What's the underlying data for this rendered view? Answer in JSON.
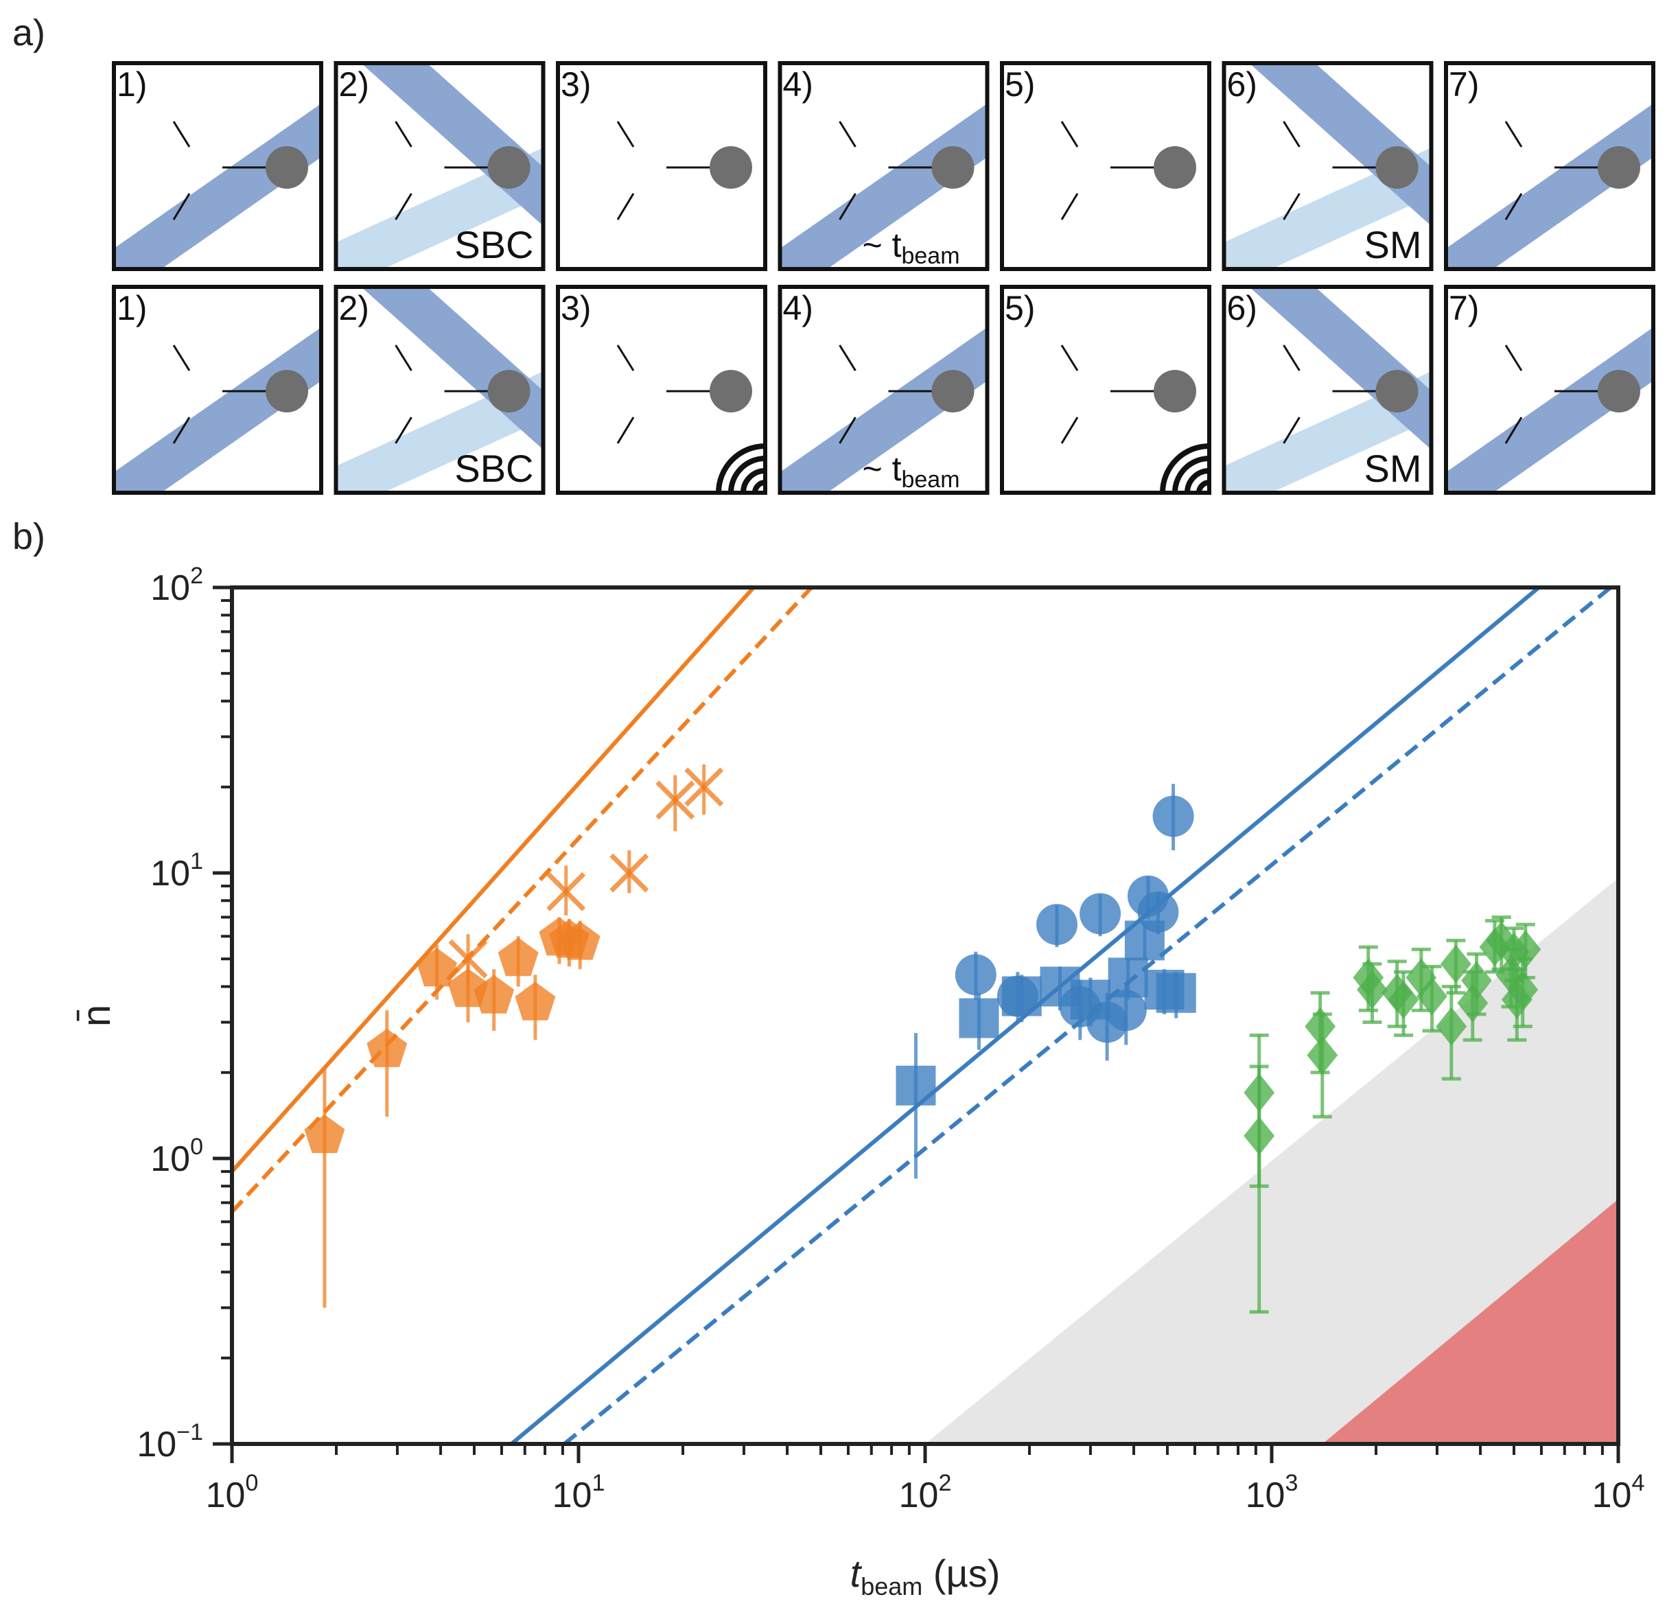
{
  "panel_a": {
    "label": "a)",
    "rows": [
      [
        {
          "num": "1)",
          "text": "",
          "t_beam": false,
          "beams": [
            "diag"
          ],
          "waves": false
        },
        {
          "num": "2)",
          "text": "SBC",
          "t_beam": false,
          "beams": [
            "light",
            "anti"
          ],
          "waves": false
        },
        {
          "num": "3)",
          "text": "",
          "t_beam": false,
          "beams": [],
          "waves": false
        },
        {
          "num": "4)",
          "text": "~ t",
          "sub": "beam",
          "t_beam": true,
          "beams": [
            "diag"
          ],
          "waves": false
        },
        {
          "num": "5)",
          "text": "",
          "t_beam": false,
          "beams": [],
          "waves": false
        },
        {
          "num": "6)",
          "text": "SM",
          "t_beam": false,
          "beams": [
            "light",
            "anti"
          ],
          "waves": false
        },
        {
          "num": "7)",
          "text": "",
          "t_beam": false,
          "beams": [
            "diag"
          ],
          "waves": false
        }
      ],
      [
        {
          "num": "1)",
          "text": "",
          "t_beam": false,
          "beams": [
            "diag"
          ],
          "waves": false
        },
        {
          "num": "2)",
          "text": "SBC",
          "t_beam": false,
          "beams": [
            "light",
            "anti"
          ],
          "waves": false
        },
        {
          "num": "3)",
          "text": "",
          "t_beam": false,
          "beams": [],
          "waves": true
        },
        {
          "num": "4)",
          "text": "~ t",
          "sub": "beam",
          "t_beam": true,
          "beams": [
            "diag"
          ],
          "waves": false
        },
        {
          "num": "5)",
          "text": "",
          "t_beam": false,
          "beams": [],
          "waves": true
        },
        {
          "num": "6)",
          "text": "SM",
          "t_beam": false,
          "beams": [
            "light",
            "anti"
          ],
          "waves": false
        },
        {
          "num": "7)",
          "text": "",
          "t_beam": false,
          "beams": [
            "diag"
          ],
          "waves": false
        }
      ]
    ]
  },
  "panel_b": {
    "label": "b)"
  },
  "colors": {
    "orange": "#f07f22",
    "blue": "#3b7dc0",
    "green": "#4daf4a",
    "gray_region": "#e6e6e6",
    "red_region": "#e48080",
    "beam_dark": "#8ba6d0",
    "beam_light": "#c6dcef",
    "ion": "#6f6f6f"
  },
  "chart_data": {
    "type": "scatter",
    "xscale": "log",
    "yscale": "log",
    "xlim": [
      1,
      10000
    ],
    "ylim": [
      0.1,
      100
    ],
    "xlabel": "t",
    "xlabel_sub": "beam",
    "xlabel_unit": " (µs)",
    "ylabel": "n̄",
    "xticks": [
      {
        "v": 1,
        "base": "10",
        "exp": "0"
      },
      {
        "v": 10,
        "base": "10",
        "exp": "1"
      },
      {
        "v": 100,
        "base": "10",
        "exp": "2"
      },
      {
        "v": 1000,
        "base": "10",
        "exp": "3"
      },
      {
        "v": 10000,
        "base": "10",
        "exp": "4"
      }
    ],
    "yticks": [
      {
        "v": 0.1,
        "base": "10",
        "exp": "−1"
      },
      {
        "v": 1,
        "base": "10",
        "exp": "0"
      },
      {
        "v": 10,
        "base": "10",
        "exp": "1"
      },
      {
        "v": 100,
        "base": "10",
        "exp": "2"
      }
    ],
    "regions": [
      {
        "name": "gray-region",
        "color": "gray_region",
        "polygon": [
          [
            100,
            0.1
          ],
          [
            10000,
            9.6
          ],
          [
            10000,
            0.1
          ]
        ]
      },
      {
        "name": "red-region",
        "color": "red_region",
        "polygon": [
          [
            1400,
            0.1
          ],
          [
            10000,
            0.72
          ],
          [
            10000,
            0.1
          ]
        ]
      }
    ],
    "lines": [
      {
        "name": "orange-fit-solid",
        "color": "orange",
        "dash": false,
        "x": [
          1,
          32
        ],
        "y": [
          0.9,
          100
        ]
      },
      {
        "name": "orange-fit-dashed",
        "color": "orange",
        "dash": true,
        "x": [
          1,
          47
        ],
        "y": [
          0.65,
          100
        ]
      },
      {
        "name": "blue-fit-solid",
        "color": "blue",
        "dash": false,
        "x": [
          6.4,
          5900
        ],
        "y": [
          0.1,
          100
        ]
      },
      {
        "name": "blue-fit-dashed",
        "color": "blue",
        "dash": true,
        "x": [
          9.1,
          9500
        ],
        "y": [
          0.1,
          100
        ]
      }
    ],
    "series": [
      {
        "name": "orange-crosses",
        "marker": "x",
        "color": "orange",
        "errcaps": false,
        "points": [
          [
            4.8,
            5.0,
            4.1,
            6.1
          ],
          [
            9.2,
            8.6,
            7.1,
            10.6
          ],
          [
            14,
            10,
            8.5,
            12
          ],
          [
            19,
            18,
            14,
            22
          ],
          [
            23,
            20,
            16,
            24
          ]
        ]
      },
      {
        "name": "orange-pentagons",
        "marker": "pentagon",
        "color": "orange",
        "errcaps": false,
        "points": [
          [
            1.85,
            1.2,
            0.3,
            2.1
          ],
          [
            2.8,
            2.4,
            1.4,
            3.3
          ],
          [
            3.9,
            4.6,
            3.6,
            5.6
          ],
          [
            4.8,
            3.9,
            3.0,
            4.8
          ],
          [
            5.7,
            3.7,
            2.8,
            4.6
          ],
          [
            6.7,
            5.0,
            4.0,
            6.0
          ],
          [
            7.5,
            3.5,
            2.6,
            4.4
          ],
          [
            8.8,
            5.9,
            4.8,
            7.0
          ],
          [
            9.4,
            5.8,
            4.7,
            6.9
          ],
          [
            10.1,
            5.7,
            4.6,
            6.8
          ]
        ]
      },
      {
        "name": "blue-squares",
        "marker": "square",
        "color": "blue",
        "errcaps": false,
        "points": [
          [
            94,
            1.8,
            0.85,
            2.75
          ],
          [
            143,
            3.1,
            2.4,
            3.8
          ],
          [
            190,
            3.7,
            3.0,
            4.4
          ],
          [
            245,
            4.0,
            3.3,
            4.7
          ],
          [
            300,
            3.6,
            2.9,
            4.3
          ],
          [
            385,
            4.3,
            3.6,
            5.0
          ],
          [
            430,
            5.8,
            5.0,
            6.6
          ],
          [
            490,
            3.9,
            3.2,
            4.6
          ],
          [
            530,
            3.8,
            3.1,
            4.5
          ]
        ]
      },
      {
        "name": "blue-circles",
        "marker": "circle",
        "color": "blue",
        "errcaps": false,
        "points": [
          [
            140,
            4.4,
            3.6,
            5.3
          ],
          [
            185,
            3.7,
            3.0,
            4.5
          ],
          [
            240,
            6.6,
            5.5,
            7.7
          ],
          [
            280,
            3.4,
            2.6,
            4.2
          ],
          [
            320,
            7.2,
            6.0,
            8.4
          ],
          [
            335,
            3.0,
            2.2,
            3.8
          ],
          [
            380,
            3.3,
            2.5,
            4.1
          ],
          [
            440,
            8.3,
            6.9,
            9.7
          ],
          [
            470,
            7.3,
            6.1,
            8.5
          ],
          [
            520,
            15.8,
            12.0,
            20.5
          ]
        ]
      },
      {
        "name": "green-diamonds",
        "marker": "diamond",
        "color": "green",
        "errcaps": true,
        "points": [
          [
            920,
            1.7,
            0.8,
            2.7
          ],
          [
            920,
            1.2,
            0.29,
            2.1
          ],
          [
            1380,
            2.9,
            2.0,
            3.8
          ],
          [
            1400,
            2.3,
            1.4,
            3.2
          ],
          [
            1900,
            4.3,
            3.3,
            5.5
          ],
          [
            1950,
            3.9,
            3.0,
            4.8
          ],
          [
            2300,
            3.8,
            2.9,
            4.9
          ],
          [
            2400,
            3.6,
            2.7,
            4.5
          ],
          [
            2700,
            4.3,
            3.3,
            5.4
          ],
          [
            2900,
            3.7,
            2.8,
            4.7
          ],
          [
            3300,
            2.9,
            1.9,
            4.0
          ],
          [
            3400,
            4.8,
            3.8,
            5.8
          ],
          [
            3800,
            3.5,
            2.6,
            4.5
          ],
          [
            3900,
            4.2,
            3.2,
            5.2
          ],
          [
            4400,
            5.5,
            4.5,
            6.8
          ],
          [
            4600,
            5.8,
            4.6,
            7.0
          ],
          [
            4900,
            4.4,
            3.4,
            5.4
          ],
          [
            5000,
            5.3,
            4.2,
            6.4
          ],
          [
            5100,
            3.6,
            2.6,
            4.6
          ],
          [
            5300,
            3.9,
            2.9,
            5.0
          ],
          [
            5400,
            5.4,
            4.3,
            6.6
          ]
        ]
      }
    ]
  }
}
